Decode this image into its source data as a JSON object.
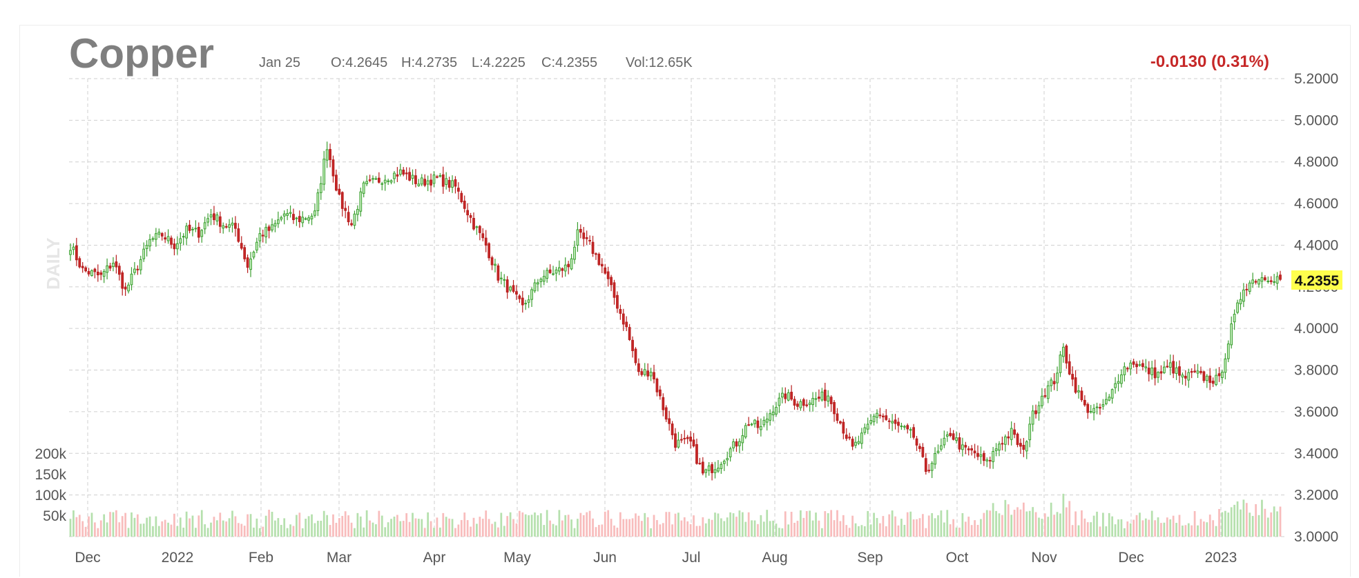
{
  "chart_data": {
    "type": "candlestick",
    "title": "Copper",
    "period_label": "DAILY",
    "ohlc_summary": {
      "date": "Jan 25",
      "open_label": "O:4.2645",
      "high_label": "H:4.2735",
      "low_label": "L:4.2225",
      "close_label": "C:4.2355",
      "volume_label": "Vol:12.65K",
      "change_label": "-0.0130 (0.31%)"
    },
    "last_price_label": "4.2355",
    "ylim": [
      3.0,
      5.2
    ],
    "y_ticks": [
      "3.0000",
      "3.2000",
      "3.4000",
      "3.6000",
      "3.8000",
      "4.0000",
      "4.2000",
      "4.4000",
      "4.6000",
      "4.8000",
      "5.0000",
      "5.2000"
    ],
    "volume_ylim": [
      0,
      200000
    ],
    "volume_ticks": [
      "50k",
      "100k",
      "150k",
      "200k"
    ],
    "x_ticks": [
      "Dec",
      "2022",
      "Feb",
      "Mar",
      "Apr",
      "May",
      "Jun",
      "Jul",
      "Aug",
      "Sep",
      "Oct",
      "Nov",
      "Dec",
      "2023"
    ],
    "colors": {
      "up": "#3a9e2f",
      "up_fill": "#c8f0c0",
      "down": "#b71c1c",
      "down_fill": "#c62828",
      "vol_up": "#b5e0ad",
      "vol_down": "#f8bcbc",
      "change": "#c62828",
      "last_bg": "#ffff4d"
    },
    "monthly_anchor_prices": [
      {
        "month": "Dec 2021",
        "price": 4.3
      },
      {
        "month": "Jan 2022",
        "price": 4.45
      },
      {
        "month": "Feb 2022",
        "price": 4.52
      },
      {
        "month": "Mar 2022",
        "price": 4.7
      },
      {
        "month": "Apr 2022",
        "price": 4.72
      },
      {
        "month": "May 2022",
        "price": 4.2
      },
      {
        "month": "Jun 2022",
        "price": 4.45
      },
      {
        "month": "Jul 2022",
        "price": 3.35
      },
      {
        "month": "Aug 2022",
        "price": 3.55
      },
      {
        "month": "Sep 2022",
        "price": 3.55
      },
      {
        "month": "Oct 2022",
        "price": 3.4
      },
      {
        "month": "Nov 2022",
        "price": 3.65
      },
      {
        "month": "Dec 2022",
        "price": 3.8
      },
      {
        "month": "Jan 2023",
        "price": 4.24
      }
    ]
  }
}
